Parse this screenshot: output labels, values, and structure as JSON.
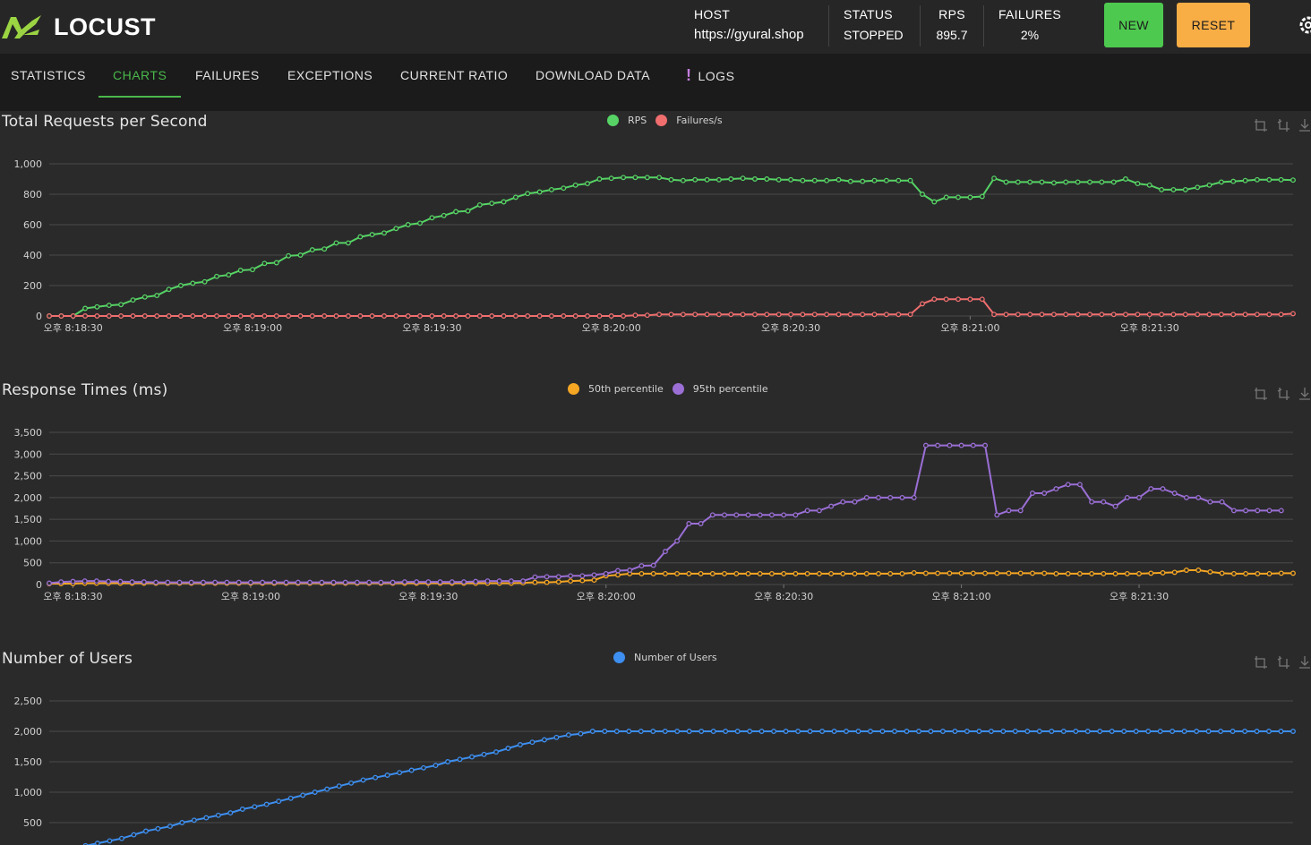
{
  "header": {
    "logo_text": "LOCUST",
    "host_label": "HOST",
    "host_value": "https://gyural.shop",
    "status_label": "STATUS",
    "status_value": "STOPPED",
    "rps_label": "RPS",
    "rps_value": "895.7",
    "failures_label": "FAILURES",
    "failures_value": "2%",
    "new_label": "NEW",
    "reset_label": "RESET",
    "colors": {
      "new": "#4ec94f",
      "reset": "#f8ad45",
      "accent": "#4ab84b"
    }
  },
  "tabs": [
    {
      "label": "STATISTICS"
    },
    {
      "label": "CHARTS",
      "active": true
    },
    {
      "label": "FAILURES"
    },
    {
      "label": "EXCEPTIONS"
    },
    {
      "label": "CURRENT RATIO"
    },
    {
      "label": "DOWNLOAD DATA"
    },
    {
      "label": "LOGS",
      "icon": "exclamation-icon"
    }
  ],
  "chart_data": [
    {
      "type": "line",
      "title": "Total Requests per Second",
      "x_tick_labels": [
        "오후 8:18:30",
        "오후 8:19:00",
        "오후 8:19:30",
        "오후 8:20:00",
        "오후 8:20:30",
        "오후 8:21:00",
        "오후 8:21:30"
      ],
      "y_tick_labels": [
        "0",
        "200",
        "400",
        "600",
        "800",
        "1,000"
      ],
      "ylim": [
        0,
        1000
      ],
      "sample_interval_s": 2,
      "grid": true,
      "legend": "top-center",
      "series": [
        {
          "name": "RPS",
          "color": "#56d364",
          "values": [
            0,
            0,
            0,
            50,
            60,
            70,
            75,
            105,
            125,
            135,
            175,
            200,
            215,
            225,
            260,
            270,
            300,
            305,
            345,
            350,
            395,
            400,
            435,
            440,
            480,
            480,
            520,
            535,
            545,
            575,
            600,
            610,
            645,
            660,
            685,
            690,
            730,
            740,
            750,
            780,
            805,
            815,
            830,
            840,
            860,
            870,
            900,
            905,
            910,
            910,
            910,
            910,
            895,
            890,
            895,
            895,
            895,
            900,
            905,
            900,
            900,
            895,
            895,
            890,
            890,
            890,
            895,
            885,
            885,
            890,
            890,
            890,
            890,
            800,
            750,
            780,
            780,
            780,
            785,
            905,
            880,
            880,
            880,
            880,
            875,
            880,
            880,
            880,
            880,
            880,
            900,
            870,
            860,
            830,
            830,
            830,
            845,
            860,
            880,
            885,
            890,
            895,
            895,
            895,
            893
          ]
        },
        {
          "name": "Failures/s",
          "color": "#f06e6e",
          "values": [
            0,
            0,
            0,
            0,
            0,
            0,
            0,
            0,
            0,
            0,
            0,
            0,
            0,
            0,
            0,
            0,
            0,
            0,
            0,
            0,
            0,
            0,
            0,
            0,
            0,
            0,
            0,
            0,
            0,
            0,
            0,
            0,
            0,
            0,
            0,
            0,
            0,
            0,
            0,
            0,
            0,
            0,
            0,
            0,
            0,
            0,
            0,
            0,
            0,
            5,
            5,
            10,
            10,
            10,
            10,
            10,
            10,
            10,
            10,
            10,
            10,
            10,
            10,
            10,
            10,
            10,
            10,
            10,
            10,
            10,
            10,
            10,
            10,
            80,
            110,
            110,
            110,
            110,
            110,
            10,
            10,
            10,
            10,
            10,
            10,
            10,
            10,
            10,
            10,
            10,
            10,
            10,
            10,
            10,
            10,
            10,
            10,
            10,
            10,
            10,
            10,
            10,
            10,
            10,
            15
          ]
        }
      ]
    },
    {
      "type": "line",
      "title": "Response Times (ms)",
      "x_tick_labels": [
        "오후 8:18:30",
        "오후 8:19:00",
        "오후 8:19:30",
        "오후 8:20:00",
        "오후 8:20:30",
        "오후 8:21:00",
        "오후 8:21:30"
      ],
      "y_tick_labels": [
        "0",
        "500",
        "1,000",
        "1,500",
        "2,000",
        "2,500",
        "3,000",
        "3,500"
      ],
      "ylim": [
        0,
        3500
      ],
      "sample_interval_s": 2,
      "grid": true,
      "legend": "top-center",
      "series": [
        {
          "name": "50th percentile",
          "color": "#f5a623",
          "values": [
            20,
            20,
            20,
            30,
            30,
            30,
            30,
            30,
            30,
            30,
            30,
            30,
            30,
            30,
            30,
            30,
            30,
            30,
            30,
            30,
            30,
            30,
            30,
            30,
            30,
            30,
            30,
            30,
            30,
            30,
            30,
            30,
            30,
            30,
            30,
            30,
            30,
            30,
            30,
            30,
            40,
            50,
            50,
            60,
            80,
            90,
            100,
            200,
            220,
            250,
            250,
            250,
            250,
            250,
            250,
            250,
            250,
            250,
            250,
            250,
            250,
            250,
            250,
            250,
            250,
            250,
            250,
            250,
            250,
            250,
            250,
            250,
            250,
            270,
            260,
            260,
            260,
            260,
            260,
            260,
            260,
            260,
            260,
            260,
            260,
            250,
            250,
            250,
            250,
            250,
            250,
            250,
            250,
            260,
            270,
            280,
            330,
            330,
            290,
            260,
            250,
            250,
            250,
            250,
            260,
            260
          ]
        },
        {
          "name": "95th percentile",
          "color": "#9b6fd6",
          "values": [
            30,
            60,
            70,
            80,
            80,
            70,
            70,
            60,
            60,
            50,
            50,
            50,
            50,
            50,
            50,
            50,
            50,
            50,
            50,
            50,
            50,
            50,
            50,
            50,
            50,
            50,
            50,
            50,
            50,
            50,
            60,
            60,
            60,
            60,
            60,
            60,
            70,
            80,
            80,
            80,
            80,
            170,
            180,
            180,
            200,
            200,
            220,
            250,
            320,
            330,
            430,
            440,
            760,
            1000,
            1400,
            1400,
            1600,
            1600,
            1600,
            1600,
            1600,
            1600,
            1600,
            1600,
            1700,
            1700,
            1800,
            1900,
            1900,
            2000,
            2000,
            2000,
            2000,
            2000,
            3200,
            3200,
            3200,
            3200,
            3200,
            3200,
            1600,
            1700,
            1700,
            2100,
            2100,
            2200,
            2300,
            2300,
            1900,
            1900,
            1800,
            2000,
            2000,
            2200,
            2200,
            2100,
            2000,
            2000,
            1900,
            1900,
            1700,
            1700,
            1700,
            1700,
            1700
          ]
        }
      ]
    },
    {
      "type": "line",
      "title": "Number of Users",
      "y_tick_labels": [
        "500",
        "1,000",
        "1,500",
        "2,000",
        "2,500"
      ],
      "ylim": [
        0,
        2500
      ],
      "sample_interval_s": 2,
      "grid": true,
      "legend": "top-center",
      "series": [
        {
          "name": "Number of Users",
          "color": "#3d8ff0",
          "values": [
            0,
            40,
            80,
            120,
            160,
            200,
            240,
            300,
            360,
            400,
            440,
            500,
            540,
            580,
            620,
            660,
            720,
            760,
            800,
            850,
            900,
            950,
            1000,
            1050,
            1100,
            1150,
            1200,
            1240,
            1280,
            1320,
            1360,
            1400,
            1440,
            1500,
            1540,
            1580,
            1620,
            1660,
            1720,
            1780,
            1820,
            1860,
            1900,
            1940,
            1960,
            2000,
            2000,
            2000,
            2000,
            2000,
            2000,
            2000,
            2000,
            2000,
            2000,
            2000,
            2000,
            2000,
            2000,
            2000,
            2000,
            2000,
            2000,
            2000,
            2000,
            2000,
            2000,
            2000,
            2000,
            2000,
            2000,
            2000,
            2000,
            2000,
            2000,
            2000,
            2000,
            2000,
            2000,
            2000,
            2000,
            2000,
            2000,
            2000,
            2000,
            2000,
            2000,
            2000,
            2000,
            2000,
            2000,
            2000,
            2000,
            2000,
            2000,
            2000,
            2000,
            2000,
            2000,
            2000,
            2000,
            2000,
            2000,
            2000
          ]
        }
      ]
    }
  ]
}
